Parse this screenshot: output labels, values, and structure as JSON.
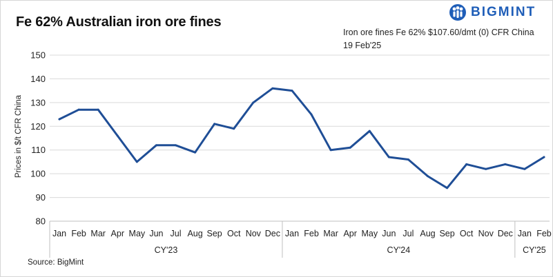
{
  "title": "Fe 62% Australian iron ore fines",
  "brand": {
    "name": "BIGMINT",
    "color": "#1f5eb8"
  },
  "price_note": {
    "line1": "Iron ore fines Fe 62% $107.60/dmt (0) CFR China",
    "line2": "19 Feb'25"
  },
  "source": "Source: BigMint",
  "chart_data": {
    "type": "line",
    "title": "Fe 62% Australian iron ore fines",
    "ylabel": "Prices in $/t CFR China",
    "xlabel": "",
    "ylim": [
      80,
      150
    ],
    "yticks": [
      80,
      90,
      100,
      110,
      120,
      130,
      140,
      150
    ],
    "grid": true,
    "line_color": "#1f4e96",
    "categories": [
      "Jan",
      "Feb",
      "Mar",
      "Apr",
      "May",
      "Jun",
      "Jul",
      "Aug",
      "Sep",
      "Oct",
      "Nov",
      "Dec",
      "Jan",
      "Feb",
      "Mar",
      "Apr",
      "May",
      "Jun",
      "Jul",
      "Aug",
      "Sep",
      "Oct",
      "Nov",
      "Dec",
      "Jan",
      "Feb"
    ],
    "groups": [
      {
        "label": "CY'23",
        "count": 12
      },
      {
        "label": "CY'24",
        "count": 12
      },
      {
        "label": "CY'25",
        "count": 2
      }
    ],
    "series": [
      {
        "values": [
          123,
          127,
          127,
          116,
          105,
          112,
          112,
          109,
          121,
          119,
          130,
          136,
          135,
          125,
          110,
          111,
          118,
          107,
          106,
          99,
          94,
          104,
          102,
          104,
          102,
          107
        ]
      }
    ]
  }
}
